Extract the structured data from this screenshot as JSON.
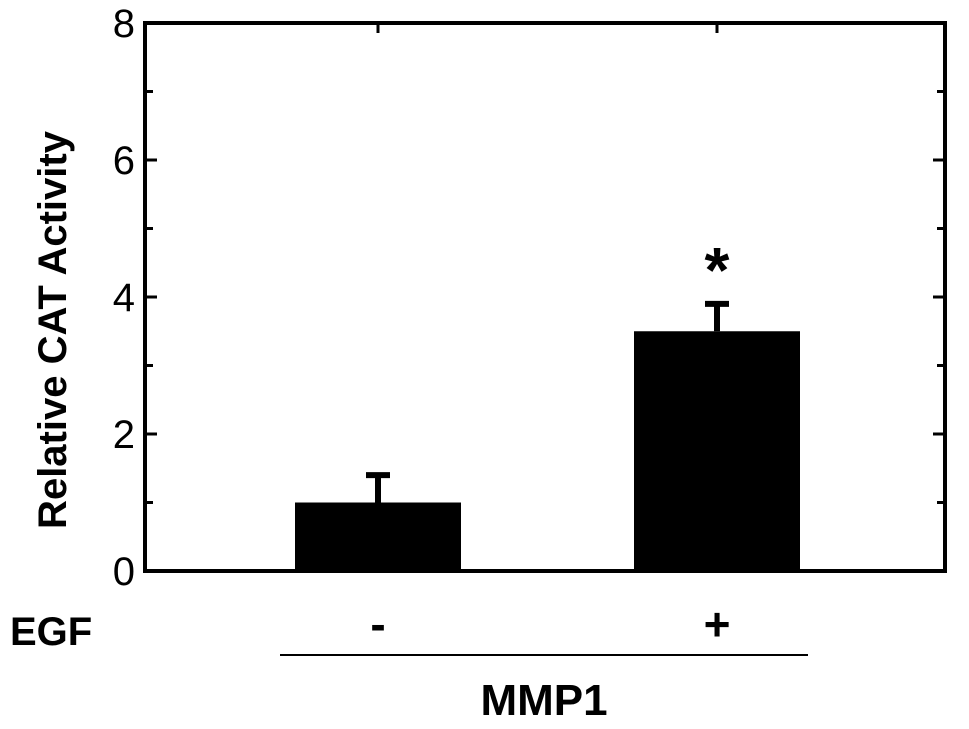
{
  "chart_data": {
    "type": "bar",
    "categories": [
      "-",
      "+"
    ],
    "values": [
      1.0,
      3.5
    ],
    "errors": [
      0.4,
      0.4
    ],
    "annotations": [
      {
        "category": "+",
        "text": "*"
      }
    ],
    "ylabel": "Relative  CAT Activity",
    "ylim": [
      0,
      8
    ],
    "yticks": [
      0,
      2,
      4,
      6,
      8
    ],
    "yticks_labels": [
      "0",
      "2",
      "4",
      "6",
      "8"
    ],
    "row_label": "EGF",
    "group_label": "MMP1",
    "grid": false,
    "bar_color": "#000000"
  }
}
